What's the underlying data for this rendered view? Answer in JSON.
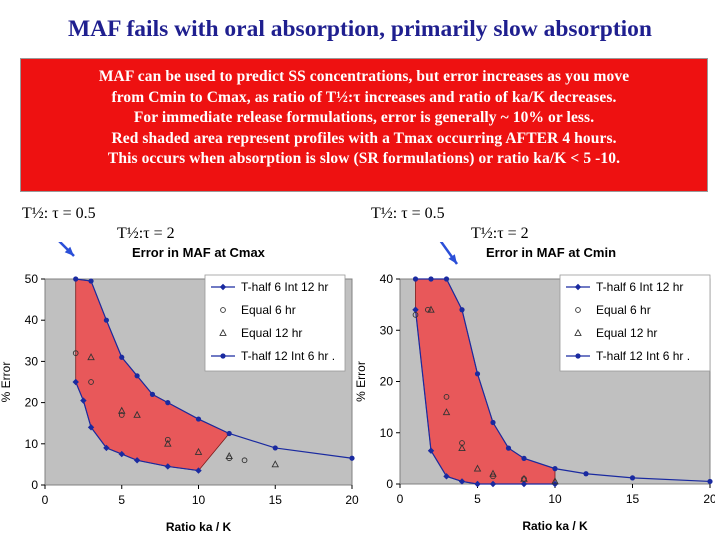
{
  "title": "MAF fails with oral absorption, primarily slow absorption",
  "note_lines": [
    "MAF can be used to predict SS concentrations, but error increases as you move",
    "from Cmin to Cmax, as ratio of T½:τ increases and ratio of ka/K decreases.",
    "For immediate release formulations, error is generally ~ 10% or less.",
    "Red shaded area represent profiles with a Tmax occurring AFTER 4 hours.",
    "This occurs when absorption is slow (SR formulations) or ratio ka/K < 5 -10."
  ],
  "labels": {
    "left_tau_low": "T½: τ = 0.5",
    "left_tau_high": "T½:τ = 2",
    "right_tau_low": "T½: τ = 0.5",
    "right_tau_high": "T½:τ = 2"
  },
  "colors": {
    "title": "#1f1f8f",
    "note_bg": "#ee1111",
    "plot_bg": "#c0c0c0",
    "shade": "#e8585a",
    "series": "#1a2aa0",
    "arrow": "#2b4fd8"
  },
  "chart_data": [
    {
      "type": "scatter",
      "title": "Error in MAF at Cmax",
      "xlabel": "Ratio ka / K",
      "ylabel": "% Error",
      "xlim": [
        0,
        20
      ],
      "ylim": [
        0,
        50
      ],
      "xticks": [
        0,
        5,
        10,
        15,
        20
      ],
      "yticks": [
        0,
        10,
        20,
        30,
        40,
        50
      ],
      "legend": "top-right",
      "series": [
        {
          "name": "T-half 6 Int 12 hr",
          "marker": "diamond",
          "x": [
            2,
            2.5,
            3,
            4,
            5,
            6,
            8,
            10
          ],
          "y": [
            25,
            20.5,
            14,
            9,
            7.5,
            6,
            4.5,
            3.5
          ]
        },
        {
          "name": "Equal 6 hr",
          "marker": "circle",
          "x": [
            2,
            3,
            5,
            8,
            12,
            13
          ],
          "y": [
            32,
            25,
            17,
            11,
            6.5,
            6
          ]
        },
        {
          "name": "Equal 12 hr",
          "marker": "triangle",
          "x": [
            3,
            5,
            6,
            8,
            10,
            12,
            15
          ],
          "y": [
            31,
            18,
            17,
            10,
            8,
            7,
            5
          ]
        },
        {
          "name": "T-half 12 Int 6 hr .",
          "marker": "dot",
          "x": [
            2,
            3,
            4,
            5,
            6,
            7,
            8,
            10,
            12,
            15,
            20
          ],
          "y": [
            50,
            49.5,
            40,
            31,
            26.5,
            22,
            20,
            16,
            12.5,
            9,
            6.5
          ]
        }
      ]
    },
    {
      "type": "scatter",
      "title": "Error in MAF at Cmin",
      "xlabel": "Ratio ka / K",
      "ylabel": "% Error",
      "xlim": [
        0,
        20
      ],
      "ylim": [
        0,
        40
      ],
      "xticks": [
        0,
        5,
        10,
        15,
        20
      ],
      "yticks": [
        0,
        10,
        20,
        30,
        40
      ],
      "legend": "top-right",
      "series": [
        {
          "name": "T-half 6 Int 12 hr",
          "marker": "diamond",
          "x": [
            1,
            2,
            3,
            4,
            5,
            6,
            8,
            10
          ],
          "y": [
            34,
            6.5,
            1.5,
            0.5,
            0,
            0,
            0,
            0
          ]
        },
        {
          "name": "Equal 6 hr",
          "marker": "circle",
          "x": [
            1,
            1.8,
            3,
            4,
            6,
            8
          ],
          "y": [
            33,
            34,
            17,
            8,
            1.5,
            1
          ]
        },
        {
          "name": "Equal 12 hr",
          "marker": "triangle",
          "x": [
            2,
            3,
            4,
            5,
            6,
            8,
            10
          ],
          "y": [
            34,
            14,
            7,
            3,
            2,
            1,
            0.5
          ]
        },
        {
          "name": "T-half 12 Int 6 hr .",
          "marker": "dot",
          "x": [
            1,
            2,
            3,
            4,
            5,
            6,
            7,
            8,
            10,
            12,
            15,
            20
          ],
          "y": [
            40,
            40,
            40,
            34,
            21.5,
            12,
            7,
            5,
            3,
            2,
            1.2,
            0.5
          ]
        }
      ]
    }
  ]
}
